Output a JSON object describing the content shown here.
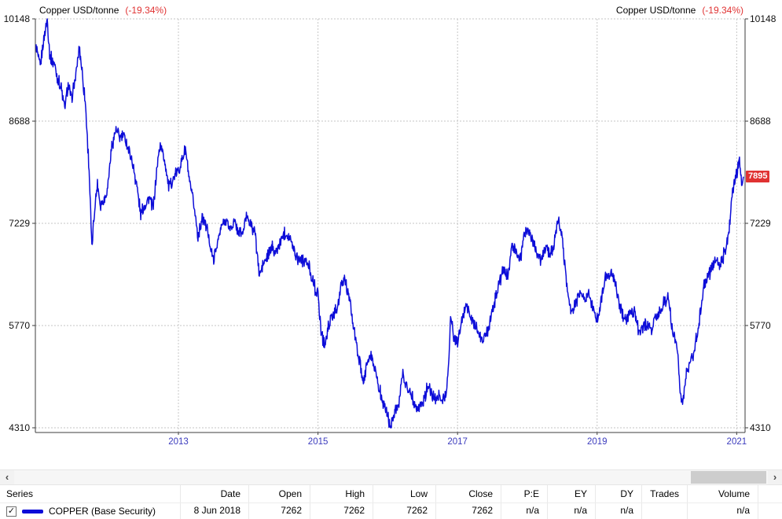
{
  "chart_header": {
    "left_title": "Copper USD/tonne",
    "left_change": "(-19.34%)",
    "right_title": "Copper USD/tonne",
    "right_change": "(-19.34%)"
  },
  "badge": {
    "text": "7895"
  },
  "icons": {
    "check": "✓",
    "scroll_left": "‹",
    "scroll_right": "›"
  },
  "colors": {
    "line": "#0d0dd8",
    "change_red": "#e03232",
    "badge_bg": "#e03232",
    "year_label": "#3b3bbd"
  },
  "chart_data": {
    "type": "line",
    "title": "Copper USD/tonne",
    "series_name": "COPPER (Base Security)",
    "change_pct": -19.34,
    "last_price": 7895,
    "line_color": "#0d0dd8",
    "tick_label_color": "#3b3bbd",
    "grid": true,
    "y_ticks": [
      10148,
      8688,
      7229,
      5770,
      4310
    ],
    "x_ticks": [
      2013,
      2015,
      2017,
      2019,
      2021
    ],
    "x_range": [
      2010.95,
      2021.12
    ],
    "y_range": [
      4310,
      10148
    ],
    "xlabel": "",
    "ylabel": "USD/tonne",
    "points": [
      [
        2010.96,
        9750
      ],
      [
        2011.02,
        9450
      ],
      [
        2011.07,
        9867
      ],
      [
        2011.12,
        10148
      ],
      [
        2011.16,
        9600
      ],
      [
        2011.22,
        9520
      ],
      [
        2011.27,
        9300
      ],
      [
        2011.32,
        9150
      ],
      [
        2011.37,
        8870
      ],
      [
        2011.42,
        9200
      ],
      [
        2011.47,
        9000
      ],
      [
        2011.53,
        9350
      ],
      [
        2011.58,
        9750
      ],
      [
        2011.62,
        9400
      ],
      [
        2011.67,
        8900
      ],
      [
        2011.72,
        8000
      ],
      [
        2011.76,
        6850
      ],
      [
        2011.8,
        7450
      ],
      [
        2011.84,
        7800
      ],
      [
        2011.88,
        7500
      ],
      [
        2011.93,
        7550
      ],
      [
        2011.98,
        7700
      ],
      [
        2012.04,
        8300
      ],
      [
        2012.1,
        8560
      ],
      [
        2012.16,
        8450
      ],
      [
        2012.22,
        8480
      ],
      [
        2012.28,
        8300
      ],
      [
        2012.34,
        8100
      ],
      [
        2012.4,
        7800
      ],
      [
        2012.46,
        7350
      ],
      [
        2012.52,
        7500
      ],
      [
        2012.58,
        7600
      ],
      [
        2012.64,
        7450
      ],
      [
        2012.7,
        8100
      ],
      [
        2012.74,
        8350
      ],
      [
        2012.8,
        8150
      ],
      [
        2012.86,
        7750
      ],
      [
        2012.92,
        7850
      ],
      [
        2012.98,
        7950
      ],
      [
        2013.04,
        8100
      ],
      [
        2013.1,
        8300
      ],
      [
        2013.16,
        7800
      ],
      [
        2013.22,
        7500
      ],
      [
        2013.28,
        7050
      ],
      [
        2013.34,
        7300
      ],
      [
        2013.4,
        7200
      ],
      [
        2013.46,
        6900
      ],
      [
        2013.5,
        6700
      ],
      [
        2013.56,
        6950
      ],
      [
        2013.62,
        7200
      ],
      [
        2013.68,
        7280
      ],
      [
        2013.74,
        7150
      ],
      [
        2013.8,
        7250
      ],
      [
        2013.86,
        7100
      ],
      [
        2013.92,
        7080
      ],
      [
        2013.98,
        7350
      ],
      [
        2014.04,
        7200
      ],
      [
        2014.1,
        7100
      ],
      [
        2014.16,
        6480
      ],
      [
        2014.22,
        6650
      ],
      [
        2014.28,
        6750
      ],
      [
        2014.34,
        6900
      ],
      [
        2014.4,
        6800
      ],
      [
        2014.46,
        6950
      ],
      [
        2014.52,
        7120
      ],
      [
        2014.58,
        7050
      ],
      [
        2014.64,
        6900
      ],
      [
        2014.7,
        6750
      ],
      [
        2014.76,
        6720
      ],
      [
        2014.82,
        6700
      ],
      [
        2014.88,
        6580
      ],
      [
        2014.94,
        6350
      ],
      [
        2015.0,
        6200
      ],
      [
        2015.05,
        5650
      ],
      [
        2015.1,
        5500
      ],
      [
        2015.16,
        5800
      ],
      [
        2015.22,
        5920
      ],
      [
        2015.28,
        6050
      ],
      [
        2015.34,
        6350
      ],
      [
        2015.38,
        6440
      ],
      [
        2015.44,
        6200
      ],
      [
        2015.5,
        5800
      ],
      [
        2015.56,
        5450
      ],
      [
        2015.62,
        5100
      ],
      [
        2015.65,
        4900
      ],
      [
        2015.7,
        5250
      ],
      [
        2015.76,
        5350
      ],
      [
        2015.82,
        5150
      ],
      [
        2015.88,
        4850
      ],
      [
        2015.94,
        4650
      ],
      [
        2016.0,
        4500
      ],
      [
        2016.04,
        4310
      ],
      [
        2016.1,
        4570
      ],
      [
        2016.16,
        4650
      ],
      [
        2016.21,
        5060
      ],
      [
        2016.27,
        4900
      ],
      [
        2016.33,
        4800
      ],
      [
        2016.39,
        4650
      ],
      [
        2016.45,
        4590
      ],
      [
        2016.51,
        4700
      ],
      [
        2016.57,
        4900
      ],
      [
        2016.63,
        4780
      ],
      [
        2016.69,
        4720
      ],
      [
        2016.75,
        4750
      ],
      [
        2016.81,
        4700
      ],
      [
        2016.86,
        5000
      ],
      [
        2016.9,
        5890
      ],
      [
        2016.95,
        5600
      ],
      [
        2017.0,
        5520
      ],
      [
        2017.06,
        5800
      ],
      [
        2017.12,
        6100
      ],
      [
        2017.18,
        5900
      ],
      [
        2017.24,
        5800
      ],
      [
        2017.3,
        5650
      ],
      [
        2017.36,
        5550
      ],
      [
        2017.42,
        5680
      ],
      [
        2017.48,
        5900
      ],
      [
        2017.54,
        6150
      ],
      [
        2017.6,
        6400
      ],
      [
        2017.66,
        6550
      ],
      [
        2017.72,
        6500
      ],
      [
        2017.78,
        6900
      ],
      [
        2017.84,
        6800
      ],
      [
        2017.9,
        6700
      ],
      [
        2017.96,
        7100
      ],
      [
        2018.02,
        7150
      ],
      [
        2018.08,
        6950
      ],
      [
        2018.14,
        6800
      ],
      [
        2018.2,
        6700
      ],
      [
        2018.26,
        6900
      ],
      [
        2018.32,
        6800
      ],
      [
        2018.38,
        6900
      ],
      [
        2018.44,
        7262
      ],
      [
        2018.48,
        7150
      ],
      [
        2018.53,
        6700
      ],
      [
        2018.58,
        6200
      ],
      [
        2018.64,
        5950
      ],
      [
        2018.7,
        6100
      ],
      [
        2018.76,
        6250
      ],
      [
        2018.82,
        6150
      ],
      [
        2018.88,
        6250
      ],
      [
        2018.94,
        6000
      ],
      [
        2019.0,
        5850
      ],
      [
        2019.06,
        6150
      ],
      [
        2019.12,
        6450
      ],
      [
        2019.18,
        6500
      ],
      [
        2019.24,
        6450
      ],
      [
        2019.3,
        6150
      ],
      [
        2019.36,
        5900
      ],
      [
        2019.42,
        5850
      ],
      [
        2019.48,
        6000
      ],
      [
        2019.54,
        5950
      ],
      [
        2019.6,
        5650
      ],
      [
        2019.66,
        5750
      ],
      [
        2019.72,
        5800
      ],
      [
        2019.78,
        5700
      ],
      [
        2019.84,
        5900
      ],
      [
        2019.9,
        5950
      ],
      [
        2019.96,
        6100
      ],
      [
        2020.02,
        6200
      ],
      [
        2020.08,
        5700
      ],
      [
        2020.14,
        5550
      ],
      [
        2020.19,
        4850
      ],
      [
        2020.23,
        4650
      ],
      [
        2020.28,
        5100
      ],
      [
        2020.34,
        5250
      ],
      [
        2020.4,
        5450
      ],
      [
        2020.46,
        5800
      ],
      [
        2020.52,
        6300
      ],
      [
        2020.58,
        6450
      ],
      [
        2020.64,
        6550
      ],
      [
        2020.7,
        6750
      ],
      [
        2020.76,
        6600
      ],
      [
        2020.82,
        6800
      ],
      [
        2020.88,
        7050
      ],
      [
        2020.94,
        7700
      ],
      [
        2021.0,
        7950
      ],
      [
        2021.04,
        8120
      ],
      [
        2021.07,
        7850
      ],
      [
        2021.1,
        7895
      ]
    ]
  },
  "table": {
    "columns": [
      {
        "label": "Series"
      },
      {
        "label": "Date"
      },
      {
        "label": "Open"
      },
      {
        "label": "High"
      },
      {
        "label": "Low"
      },
      {
        "label": "Close"
      },
      {
        "label": "P:E"
      },
      {
        "label": "EY"
      },
      {
        "label": "DY"
      },
      {
        "label": "Trades"
      },
      {
        "label": "Volume"
      }
    ],
    "row": {
      "checked": true,
      "series": "COPPER (Base Security)",
      "values": [
        "8 Jun 2018",
        "7262",
        "7262",
        "7262",
        "7262",
        "n/a",
        "n/a",
        "n/a",
        "",
        "n/a"
      ]
    }
  }
}
